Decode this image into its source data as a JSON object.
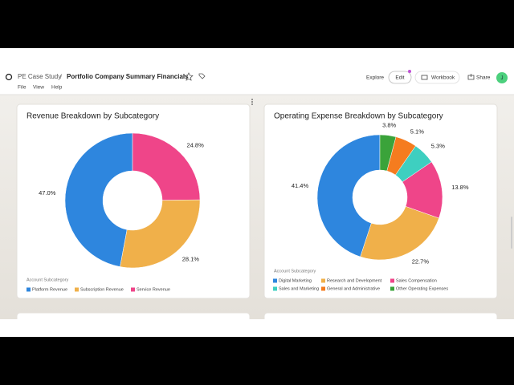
{
  "header": {
    "breadcrumb": "PE Case Study",
    "separator": "/",
    "title": "Portfolio Company Summary Financials",
    "menu": [
      "File",
      "View",
      "Help"
    ],
    "actions": [
      "Explore",
      "Edit",
      "Workbook",
      "Share"
    ],
    "avatar": "J"
  },
  "chart_data": [
    {
      "type": "donut",
      "title": "Revenue Breakdown by Subcategory",
      "legend_title": "Account Subcategory",
      "categories": [
        "Platform Revenue",
        "Subscription Revenue",
        "Service Revenue"
      ],
      "values": [
        47.0,
        28.1,
        24.8
      ],
      "value_labels": [
        "47.0%",
        "28.1%",
        "24.8%"
      ],
      "colors": [
        "#2e86de",
        "#f0b04a",
        "#ef4589"
      ]
    },
    {
      "type": "donut",
      "title": "Operating Expense Breakdown by Subcategory",
      "legend_title": "Account Subcategory",
      "categories": [
        "Digital Marketing",
        "Research and Development",
        "Sales Compensation",
        "Sales and Marketing",
        "General and Administrative",
        "Other Operating Expenses"
      ],
      "values": [
        41.4,
        22.7,
        13.8,
        5.3,
        5.1,
        3.8
      ],
      "value_labels": [
        "41.4%",
        "22.7%",
        "13.8%",
        "5.3%",
        "5.1%",
        "3.8%"
      ],
      "colors": [
        "#2e86de",
        "#f0b04a",
        "#ef4589",
        "#3ecfc0",
        "#f57c1f",
        "#3aa33a"
      ]
    }
  ]
}
